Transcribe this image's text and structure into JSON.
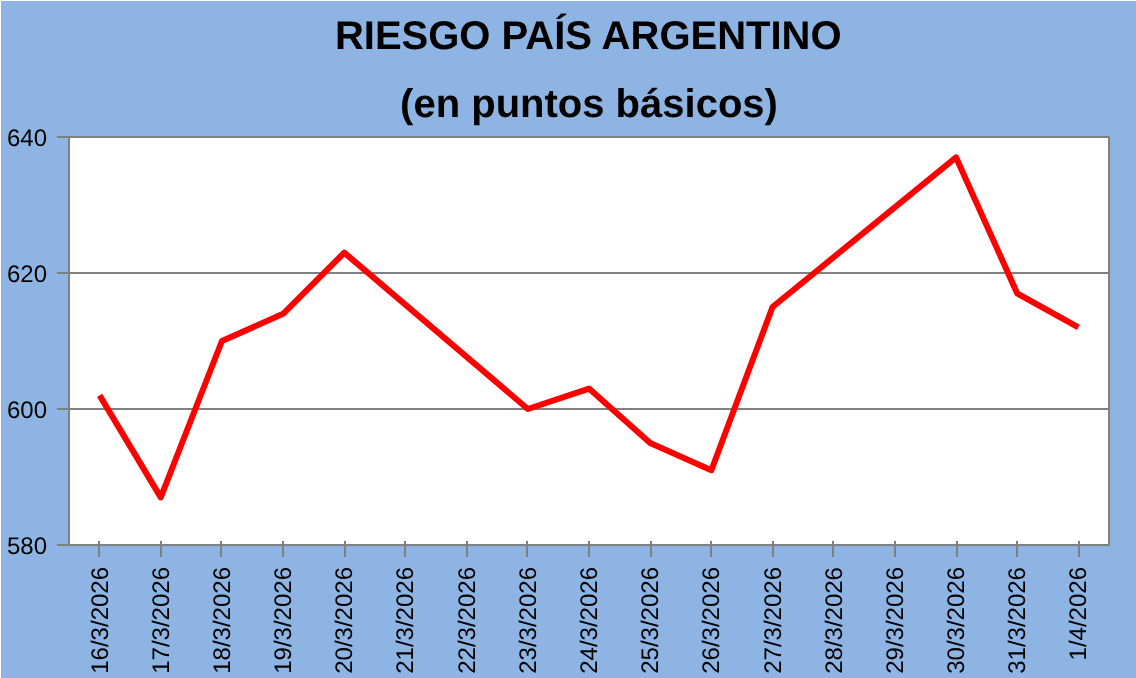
{
  "chart_data": {
    "type": "line",
    "title": "RIESGO PAÍS ARGENTINO",
    "subtitle": "(en puntos básicos)",
    "x": [
      "2026-03-16",
      "2026-03-17",
      "2026-03-18",
      "2026-03-19",
      "2026-03-20",
      "2026-03-23",
      "2026-03-24",
      "2026-03-25",
      "2026-03-26",
      "2026-03-27",
      "2026-03-30",
      "2026-03-31",
      "2026-04-01"
    ],
    "series": [
      {
        "color": "#ff0000",
        "values": [
          602,
          587,
          610,
          614,
          623,
          600,
          603,
          595,
          591,
          615,
          637,
          617,
          612
        ]
      }
    ],
    "xlim": [
      "2026-03-15T12:00",
      "2026-04-01T12:00"
    ],
    "xticks": [
      {
        "value": "2026-03-16",
        "label": "16/3/2026"
      },
      {
        "value": "2026-03-17",
        "label": "17/3/2026"
      },
      {
        "value": "2026-03-18",
        "label": "18/3/2026"
      },
      {
        "value": "2026-03-19",
        "label": "19/3/2026"
      },
      {
        "value": "2026-03-20",
        "label": "20/3/2026"
      },
      {
        "value": "2026-03-21",
        "label": "21/3/2026"
      },
      {
        "value": "2026-03-22",
        "label": "22/3/2026"
      },
      {
        "value": "2026-03-23",
        "label": "23/3/2026"
      },
      {
        "value": "2026-03-24",
        "label": "24/3/2026"
      },
      {
        "value": "2026-03-25",
        "label": "25/3/2026"
      },
      {
        "value": "2026-03-26",
        "label": "26/3/2026"
      },
      {
        "value": "2026-03-27",
        "label": "27/3/2026"
      },
      {
        "value": "2026-03-28",
        "label": "28/3/2026"
      },
      {
        "value": "2026-03-29",
        "label": "29/3/2026"
      },
      {
        "value": "2026-03-30",
        "label": "30/3/2026"
      },
      {
        "value": "2026-03-31",
        "label": "31/3/2026"
      },
      {
        "value": "2026-04-01",
        "label": "1/4/2026"
      }
    ],
    "ylim": [
      580,
      640
    ],
    "yticks": [
      580,
      600,
      620,
      640
    ],
    "grid": "y",
    "marker": "none",
    "line_style": "solid"
  }
}
